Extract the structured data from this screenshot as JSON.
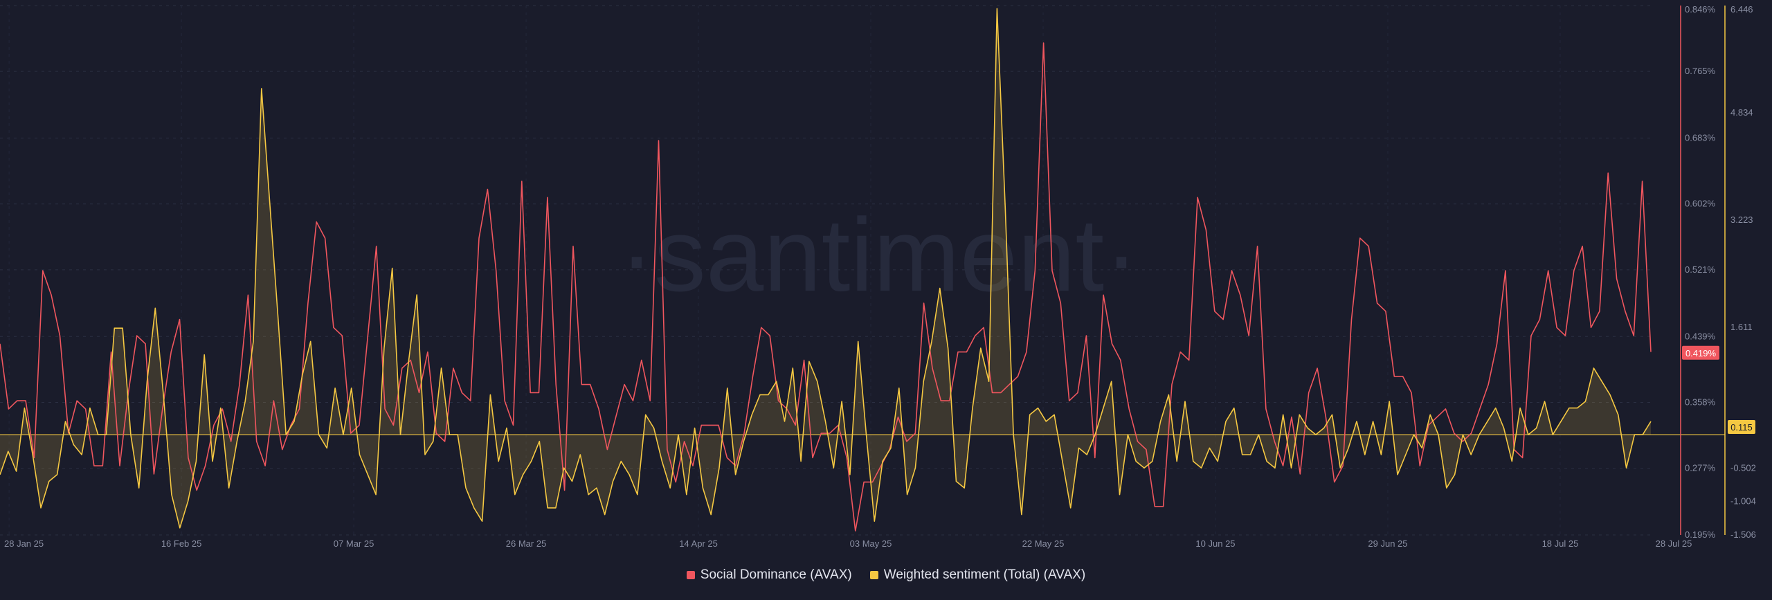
{
  "watermark": "·santiment·",
  "chart_data": {
    "type": "line",
    "x_labels": [
      "28 Jan 25",
      "16 Feb 25",
      "07 Mar 25",
      "26 Mar 25",
      "14 Apr 25",
      "03 May 25",
      "22 May 25",
      "10 Jun 25",
      "29 Jun 25",
      "18 Jul 25",
      "28 Jul 25"
    ],
    "x_start": "2025-01-27",
    "x_end": "2025-07-28",
    "grid": true,
    "legend_position": "bottom-center",
    "axes": {
      "right_outer": {
        "color": "#f0565e",
        "range": [
          0.195,
          0.846
        ],
        "ticks": [
          "0.846%",
          "0.765%",
          "0.683%",
          "0.602%",
          "0.521%",
          "0.439%",
          "0.358%",
          "0.277%",
          "0.195%"
        ],
        "current_label": "0.419%"
      },
      "right_inner": {
        "color": "#f5c842",
        "range": [
          -1.506,
          6.446
        ],
        "ticks": [
          "6.446",
          "4.834",
          "3.223",
          "1.611",
          "-0.502",
          "-1.004",
          "-1.506"
        ],
        "current_label": "0.115"
      }
    },
    "series": [
      {
        "name": "Social Dominance (AVAX)",
        "color": "#f0565e",
        "axis": "right_outer",
        "values": [
          0.43,
          0.35,
          0.36,
          0.36,
          0.29,
          0.52,
          0.49,
          0.44,
          0.32,
          0.36,
          0.35,
          0.28,
          0.28,
          0.42,
          0.28,
          0.37,
          0.44,
          0.43,
          0.27,
          0.35,
          0.42,
          0.46,
          0.29,
          0.25,
          0.28,
          0.33,
          0.35,
          0.31,
          0.38,
          0.49,
          0.31,
          0.28,
          0.36,
          0.3,
          0.33,
          0.35,
          0.48,
          0.58,
          0.56,
          0.45,
          0.44,
          0.32,
          0.33,
          0.44,
          0.55,
          0.35,
          0.33,
          0.4,
          0.41,
          0.37,
          0.42,
          0.32,
          0.31,
          0.4,
          0.37,
          0.36,
          0.56,
          0.62,
          0.52,
          0.36,
          0.33,
          0.63,
          0.37,
          0.37,
          0.61,
          0.38,
          0.25,
          0.55,
          0.38,
          0.38,
          0.35,
          0.3,
          0.34,
          0.38,
          0.36,
          0.41,
          0.36,
          0.68,
          0.3,
          0.26,
          0.31,
          0.28,
          0.33,
          0.33,
          0.33,
          0.29,
          0.28,
          0.32,
          0.39,
          0.45,
          0.44,
          0.36,
          0.35,
          0.33,
          0.41,
          0.29,
          0.32,
          0.32,
          0.33,
          0.29,
          0.2,
          0.26,
          0.26,
          0.28,
          0.3,
          0.34,
          0.31,
          0.32,
          0.48,
          0.4,
          0.36,
          0.36,
          0.42,
          0.42,
          0.44,
          0.45,
          0.37,
          0.37,
          0.38,
          0.39,
          0.42,
          0.52,
          0.8,
          0.52,
          0.48,
          0.36,
          0.37,
          0.44,
          0.29,
          0.49,
          0.43,
          0.41,
          0.35,
          0.31,
          0.3,
          0.23,
          0.23,
          0.38,
          0.42,
          0.41,
          0.61,
          0.57,
          0.47,
          0.46,
          0.52,
          0.49,
          0.44,
          0.55,
          0.35,
          0.31,
          0.28,
          0.34,
          0.27,
          0.37,
          0.4,
          0.34,
          0.26,
          0.28,
          0.46,
          0.56,
          0.55,
          0.48,
          0.47,
          0.39,
          0.39,
          0.37,
          0.28,
          0.33,
          0.34,
          0.35,
          0.32,
          0.31,
          0.32,
          0.35,
          0.38,
          0.43,
          0.52,
          0.3,
          0.29,
          0.44,
          0.46,
          0.52,
          0.45,
          0.44,
          0.52,
          0.55,
          0.45,
          0.47,
          0.64,
          0.51,
          0.47,
          0.44,
          0.63,
          0.42
        ]
      },
      {
        "name": "Weighted sentiment (Total) (AVAX)",
        "color": "#f5c842",
        "axis": "right_inner",
        "values": [
          -0.6,
          -0.25,
          -0.55,
          0.4,
          -0.3,
          -1.1,
          -0.7,
          -0.6,
          0.2,
          -0.15,
          -0.3,
          0.4,
          0.0,
          0.0,
          1.6,
          1.6,
          0.0,
          -0.8,
          0.8,
          1.9,
          0.6,
          -0.9,
          -1.4,
          -1.0,
          -0.4,
          1.2,
          -0.4,
          0.4,
          -0.8,
          -0.1,
          0.5,
          1.4,
          5.2,
          3.5,
          1.8,
          0.0,
          0.2,
          0.9,
          1.4,
          0.0,
          -0.2,
          0.7,
          0.0,
          0.7,
          -0.3,
          -0.6,
          -0.9,
          1.3,
          2.5,
          0.0,
          1.1,
          2.1,
          -0.3,
          -0.1,
          1.0,
          0.0,
          0.0,
          -0.8,
          -1.1,
          -1.3,
          0.6,
          -0.4,
          0.1,
          -0.9,
          -0.6,
          -0.4,
          -0.1,
          -1.1,
          -1.1,
          -0.5,
          -0.7,
          -0.3,
          -0.9,
          -0.8,
          -1.2,
          -0.7,
          -0.4,
          -0.6,
          -0.9,
          0.3,
          0.1,
          -0.4,
          -0.8,
          0.0,
          -0.9,
          0.1,
          -0.8,
          -1.2,
          -0.5,
          0.7,
          -0.6,
          -0.1,
          0.3,
          0.6,
          0.6,
          0.8,
          0.2,
          1.0,
          -0.4,
          1.1,
          0.8,
          0.2,
          -0.5,
          0.5,
          -0.6,
          1.4,
          0.0,
          -1.3,
          -0.4,
          -0.2,
          0.7,
          -0.9,
          -0.5,
          0.8,
          1.4,
          2.2,
          1.3,
          -0.7,
          -0.8,
          0.4,
          1.3,
          0.8,
          6.4,
          3.4,
          0.0,
          -1.2,
          0.3,
          0.4,
          0.2,
          0.3,
          -0.4,
          -1.1,
          -0.2,
          -0.3,
          0.0,
          0.4,
          0.8,
          -0.9,
          0.0,
          -0.4,
          -0.5,
          -0.4,
          0.2,
          0.6,
          -0.4,
          0.5,
          -0.4,
          -0.5,
          -0.2,
          -0.4,
          0.2,
          0.4,
          -0.3,
          -0.3,
          0.0,
          -0.4,
          -0.5,
          0.3,
          -0.5,
          0.3,
          0.1,
          0.0,
          0.1,
          0.3,
          -0.5,
          -0.2,
          0.2,
          -0.3,
          0.2,
          -0.3,
          0.5,
          -0.6,
          -0.3,
          0.0,
          -0.2,
          0.3,
          0.0,
          -0.8,
          -0.6,
          0.0,
          -0.3,
          0.0,
          0.2,
          0.4,
          0.1,
          -0.4,
          0.4,
          0.0,
          0.1,
          0.5,
          0.0,
          0.2,
          0.4,
          0.4,
          0.5,
          1.0,
          0.8,
          0.6,
          0.3,
          -0.5,
          0.0,
          0.0,
          0.2
        ]
      }
    ]
  }
}
